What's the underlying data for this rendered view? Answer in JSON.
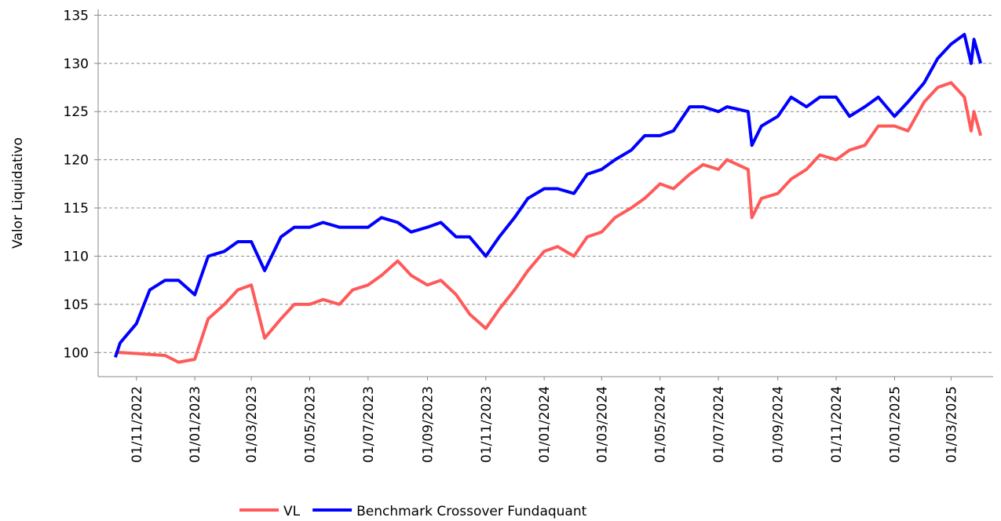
{
  "chart_data": {
    "type": "line",
    "y_label": "Valor Liquidativo",
    "x": [
      "10/10/2022",
      "15/10/2022",
      "01/11/2022",
      "15/11/2022",
      "01/12/2022",
      "15/12/2022",
      "01/01/2023",
      "15/01/2023",
      "01/02/2023",
      "15/02/2023",
      "01/03/2023",
      "15/03/2023",
      "01/04/2023",
      "15/04/2023",
      "01/05/2023",
      "15/05/2023",
      "01/06/2023",
      "15/06/2023",
      "01/07/2023",
      "15/07/2023",
      "01/08/2023",
      "15/08/2023",
      "01/09/2023",
      "15/09/2023",
      "01/10/2023",
      "15/10/2023",
      "01/11/2023",
      "15/11/2023",
      "01/12/2023",
      "15/12/2023",
      "01/01/2024",
      "15/01/2024",
      "01/02/2024",
      "15/02/2024",
      "01/03/2024",
      "15/03/2024",
      "01/04/2024",
      "15/04/2024",
      "01/05/2024",
      "15/05/2024",
      "01/06/2024",
      "15/06/2024",
      "01/07/2024",
      "10/07/2024",
      "01/08/2024",
      "05/08/2024",
      "15/08/2024",
      "01/09/2024",
      "15/09/2024",
      "01/10/2024",
      "15/10/2024",
      "01/11/2024",
      "15/11/2024",
      "01/12/2024",
      "15/12/2024",
      "01/01/2025",
      "15/01/2025",
      "01/02/2025",
      "15/02/2025",
      "01/03/2025",
      "15/03/2025",
      "22/03/2025",
      "25/03/2025",
      "01/04/2025"
    ],
    "series": [
      {
        "name": "VL",
        "color": "#ff5a5a",
        "values": [
          100,
          100,
          99.9,
          99.8,
          99.7,
          99,
          99.3,
          103.5,
          105,
          106.5,
          107,
          101.5,
          103.5,
          105,
          105,
          105.5,
          105,
          106.5,
          107,
          108,
          109.5,
          108,
          107,
          107.5,
          106,
          104,
          102.5,
          104.5,
          106.5,
          108.5,
          110.5,
          111,
          110,
          112,
          112.5,
          114,
          115,
          116,
          117.5,
          117,
          118.5,
          119.5,
          119,
          120,
          119,
          114,
          116,
          116.5,
          118,
          119,
          120.5,
          120,
          121,
          121.5,
          123.5,
          123.5,
          123,
          126,
          127.5,
          128,
          126.5,
          123,
          125,
          122.5
        ]
      },
      {
        "name": "Benchmark Crossover Fundaquant",
        "color": "#0000ff",
        "values": [
          99.5,
          101,
          103,
          106.5,
          107.5,
          107.5,
          106,
          110,
          110.5,
          111.5,
          111.5,
          108.5,
          112,
          113,
          113,
          113.5,
          113,
          113,
          113,
          114,
          113.5,
          112.5,
          113,
          113.5,
          112,
          112,
          110,
          112,
          114,
          116,
          117,
          117,
          116.5,
          118.5,
          119,
          120,
          121,
          122.5,
          122.5,
          123,
          125.5,
          125.5,
          125,
          125.5,
          125,
          121.5,
          123.5,
          124.5,
          126.5,
          125.5,
          126.5,
          126.5,
          124.5,
          125.5,
          126.5,
          124.5,
          126,
          128,
          130.5,
          132,
          133,
          130,
          132.5,
          130
        ]
      }
    ],
    "xlim": [
      "22/09/2022",
      "14/04/2025"
    ],
    "xticks": [
      "01/11/2022",
      "01/01/2023",
      "01/03/2023",
      "01/05/2023",
      "01/07/2023",
      "01/09/2023",
      "01/11/2023",
      "01/01/2024",
      "01/03/2024",
      "01/05/2024",
      "01/07/2024",
      "01/09/2024",
      "01/11/2024",
      "01/01/2025",
      "01/03/2025"
    ],
    "ylim": [
      97.5,
      135.6
    ],
    "yticks": [
      100,
      105,
      110,
      115,
      120,
      125,
      130,
      135
    ],
    "grid": true
  }
}
